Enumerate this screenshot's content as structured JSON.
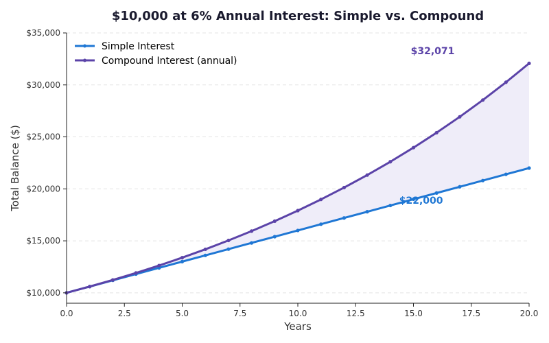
{
  "chart_data": {
    "type": "line",
    "title": "$10,000 at 6% Annual Interest: Simple vs. Compound",
    "xlabel": "Years",
    "ylabel": "Total Balance ($)",
    "xlim": [
      0,
      20
    ],
    "ylim": [
      9000,
      35000
    ],
    "x_ticks": [
      0,
      2.5,
      5,
      7.5,
      10,
      12.5,
      15,
      17.5,
      20
    ],
    "x_tick_labels": [
      "0.0",
      "2.5",
      "5.0",
      "7.5",
      "10.0",
      "12.5",
      "15.0",
      "17.5",
      "20.0"
    ],
    "y_ticks": [
      10000,
      15000,
      20000,
      25000,
      30000,
      35000
    ],
    "y_tick_labels": [
      "$10,000",
      "$15,000",
      "$20,000",
      "$25,000",
      "$30,000",
      "$35,000"
    ],
    "grid": "horizontal-dashed",
    "legend_position": "top-left",
    "x": [
      0,
      1,
      2,
      3,
      4,
      5,
      6,
      7,
      8,
      9,
      10,
      11,
      12,
      13,
      14,
      15,
      16,
      17,
      18,
      19,
      20
    ],
    "series": [
      {
        "name": "Simple Interest",
        "color": "#1f77d4",
        "values": [
          10000,
          10600,
          11200,
          11800,
          12400,
          13000,
          13600,
          14200,
          14800,
          15400,
          16000,
          16600,
          17200,
          17800,
          18400,
          19000,
          19600,
          20200,
          20800,
          21400,
          22000
        ]
      },
      {
        "name": "Compound Interest (annual)",
        "color": "#5b43a8",
        "values": [
          10000,
          10600,
          11236,
          11910,
          12625,
          13382,
          14185,
          15036,
          15938,
          16895,
          17908,
          18983,
          20122,
          21329,
          22609,
          23966,
          25404,
          26928,
          28543,
          30256,
          32071
        ]
      }
    ],
    "fill_between_color": "#efedf9",
    "annotations": [
      {
        "text": "$32,071",
        "x": 15.0,
        "y": 33300,
        "color": "#5b43a8"
      },
      {
        "text": "$22,000",
        "x": 14.5,
        "y": 18900,
        "color": "#1f77d4"
      }
    ]
  }
}
